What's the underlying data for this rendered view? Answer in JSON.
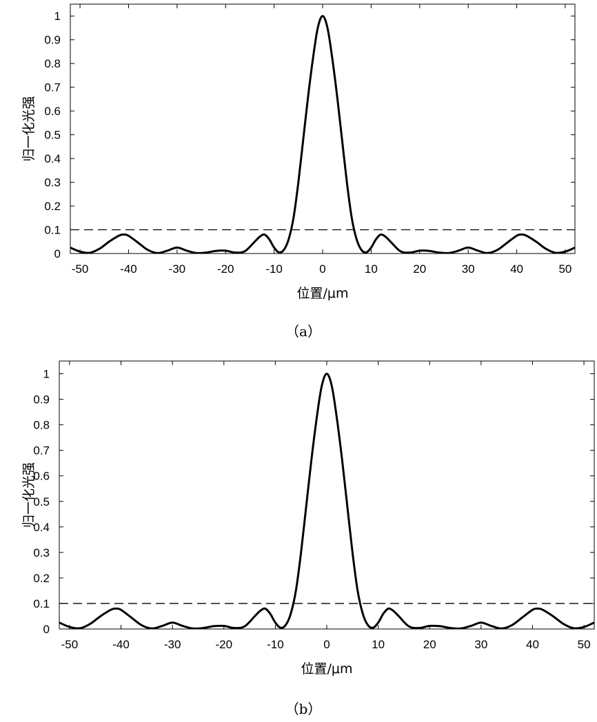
{
  "chart_data": [
    {
      "type": "line",
      "caption": "（a）",
      "xlabel": "位置/μm",
      "ylabel": "归一化光强",
      "xlim": [
        -52,
        52
      ],
      "ylim": [
        0,
        1.05
      ],
      "xticks": [
        -50,
        -40,
        -30,
        -20,
        -10,
        0,
        10,
        20,
        30,
        40,
        50
      ],
      "xtick_labels": [
        "-50",
        "-40",
        "-30",
        "-20",
        "-10",
        "0",
        "10",
        "20",
        "30",
        "40",
        "50"
      ],
      "yticks": [
        0,
        0.1,
        0.2,
        0.3,
        0.4,
        0.5,
        0.6,
        0.7,
        0.8,
        0.9,
        1
      ],
      "ytick_labels": [
        "0",
        "0.1",
        "0.2",
        "0.3",
        "0.4",
        "0.5",
        "0.6",
        "0.7",
        "0.8",
        "0.9",
        "1"
      ],
      "grid": false,
      "threshold_line": {
        "y": 0.1,
        "style": "dashed"
      },
      "series": [
        {
          "x": [
            -52,
            -50,
            -48,
            -46,
            -44,
            -42,
            -41,
            -40,
            -38,
            -36,
            -34,
            -32,
            -30,
            -28,
            -26,
            -24,
            -22,
            -20,
            -18,
            -16,
            -14,
            -13,
            -12,
            -11,
            -10,
            -9,
            -8,
            -7,
            -6,
            -5,
            -4,
            -3,
            -2,
            -1,
            0,
            1,
            2,
            3,
            4,
            5,
            6,
            7,
            8,
            9,
            10,
            11,
            12,
            13,
            14,
            16,
            18,
            20,
            22,
            24,
            26,
            28,
            30,
            32,
            34,
            36,
            38,
            40,
            41,
            42,
            44,
            46,
            48,
            50,
            52
          ],
          "y": [
            0.025,
            0.008,
            0.003,
            0.02,
            0.05,
            0.075,
            0.08,
            0.075,
            0.045,
            0.015,
            0.002,
            0.012,
            0.025,
            0.012,
            0.002,
            0.004,
            0.011,
            0.012,
            0.004,
            0.01,
            0.05,
            0.07,
            0.08,
            0.06,
            0.025,
            0.005,
            0.015,
            0.06,
            0.15,
            0.3,
            0.48,
            0.66,
            0.82,
            0.95,
            1.0,
            0.95,
            0.82,
            0.66,
            0.48,
            0.3,
            0.15,
            0.06,
            0.015,
            0.005,
            0.025,
            0.06,
            0.08,
            0.07,
            0.05,
            0.01,
            0.004,
            0.012,
            0.011,
            0.004,
            0.002,
            0.012,
            0.025,
            0.012,
            0.002,
            0.015,
            0.045,
            0.075,
            0.08,
            0.075,
            0.05,
            0.02,
            0.003,
            0.008,
            0.025
          ]
        }
      ]
    },
    {
      "type": "line",
      "caption": "（b）",
      "xlabel": "位置/μm",
      "ylabel": "归一化光强",
      "xlim": [
        -52,
        52
      ],
      "ylim": [
        0,
        1.05
      ],
      "xticks": [
        -50,
        -40,
        -30,
        -20,
        -10,
        0,
        10,
        20,
        30,
        40,
        50
      ],
      "xtick_labels": [
        "-50",
        "-40",
        "-30",
        "-20",
        "-10",
        "0",
        "10",
        "20",
        "30",
        "40",
        "50"
      ],
      "yticks": [
        0,
        0.1,
        0.2,
        0.3,
        0.4,
        0.5,
        0.6,
        0.7,
        0.8,
        0.9,
        1
      ],
      "ytick_labels": [
        "0",
        "0.1",
        "0.2",
        "0.3",
        "0.4",
        "0.5",
        "0.6",
        "0.7",
        "0.8",
        "0.9",
        "1"
      ],
      "grid": false,
      "threshold_line": {
        "y": 0.1,
        "style": "dashed"
      },
      "series": [
        {
          "x": [
            -52,
            -50,
            -48,
            -46,
            -44,
            -42,
            -41,
            -40,
            -38,
            -36,
            -34,
            -32,
            -30,
            -28,
            -26,
            -24,
            -22,
            -20,
            -18,
            -16,
            -14,
            -13,
            -12,
            -11,
            -10,
            -9,
            -8,
            -7,
            -6,
            -5,
            -4,
            -3,
            -2,
            -1,
            0,
            1,
            2,
            3,
            4,
            5,
            6,
            7,
            8,
            9,
            10,
            11,
            12,
            13,
            14,
            16,
            18,
            20,
            22,
            24,
            26,
            28,
            30,
            32,
            34,
            36,
            38,
            40,
            41,
            42,
            44,
            46,
            48,
            50,
            52
          ],
          "y": [
            0.025,
            0.008,
            0.003,
            0.02,
            0.05,
            0.075,
            0.08,
            0.075,
            0.045,
            0.015,
            0.002,
            0.012,
            0.025,
            0.012,
            0.002,
            0.004,
            0.011,
            0.012,
            0.004,
            0.01,
            0.05,
            0.07,
            0.08,
            0.06,
            0.025,
            0.005,
            0.015,
            0.06,
            0.15,
            0.3,
            0.48,
            0.66,
            0.82,
            0.95,
            1.0,
            0.95,
            0.82,
            0.66,
            0.48,
            0.3,
            0.15,
            0.06,
            0.015,
            0.005,
            0.025,
            0.06,
            0.08,
            0.07,
            0.05,
            0.01,
            0.004,
            0.012,
            0.011,
            0.004,
            0.002,
            0.012,
            0.025,
            0.012,
            0.002,
            0.015,
            0.045,
            0.075,
            0.08,
            0.075,
            0.05,
            0.02,
            0.003,
            0.008,
            0.025
          ]
        }
      ]
    }
  ]
}
